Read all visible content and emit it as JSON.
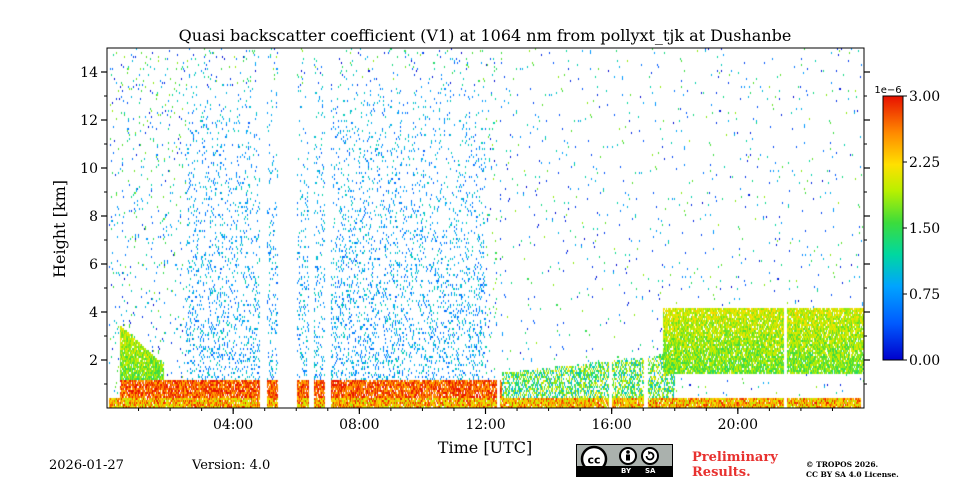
{
  "chart_data": {
    "type": "heatmap",
    "title": "Quasi backscatter coefficient (V1) at 1064 nm from pollyxt_tjk at Dushanbe",
    "xlabel": "Time [UTC]",
    "ylabel": "Height [km]",
    "xlim_hours": [
      0,
      24
    ],
    "ylim_km": [
      0,
      15
    ],
    "x_ticks": [
      {
        "hour": 4,
        "label": "04:00"
      },
      {
        "hour": 8,
        "label": "08:00"
      },
      {
        "hour": 12,
        "label": "12:00"
      },
      {
        "hour": 16,
        "label": "16:00"
      },
      {
        "hour": 20,
        "label": "20:00"
      }
    ],
    "x_minor_every_hours": 1,
    "y_ticks": [
      2,
      4,
      6,
      8,
      10,
      12,
      14
    ],
    "colorbar": {
      "exponent_label": "1e−6",
      "min": 0.0,
      "max": 3.0,
      "ticks": [
        "0.00",
        "0.75",
        "1.50",
        "2.25",
        "3.00"
      ],
      "colormap": "jet"
    },
    "no_data_gaps_hours": [
      [
        4.85,
        5.05
      ],
      [
        5.4,
        6.0
      ],
      [
        6.4,
        6.55
      ],
      [
        6.9,
        7.1
      ],
      [
        12.35,
        12.45
      ],
      [
        15.9,
        16.0
      ],
      [
        17.0,
        17.15
      ],
      [
        21.45,
        21.55
      ]
    ],
    "features": [
      {
        "name": "aerosol layer",
        "time_hours": [
          0.4,
          12.5
        ],
        "height_km": [
          0.3,
          1.2
        ],
        "level": "high"
      },
      {
        "name": "residual layer",
        "time_hours": [
          0.4,
          1.8
        ],
        "height_km": [
          1.2,
          3.5
        ],
        "level": "medium"
      },
      {
        "name": "cloud layer",
        "time_hours": [
          17.6,
          24
        ],
        "height_km": [
          1.5,
          4.2
        ],
        "level": "medium"
      },
      {
        "name": "noise region",
        "time_hours": [
          2.5,
          12.0
        ],
        "height_km": [
          1.0,
          15.0
        ],
        "level": "low"
      }
    ]
  },
  "footer": {
    "date": "2026-01-27",
    "version": "Version: 4.0",
    "license_badge": {
      "by": "BY",
      "sa": "SA"
    },
    "preliminary_line1": "Preliminary",
    "preliminary_line2": "Results.",
    "copyright_line1": "© TROPOS 2026.",
    "copyright_line2": "CC BY SA 4.0 License."
  }
}
